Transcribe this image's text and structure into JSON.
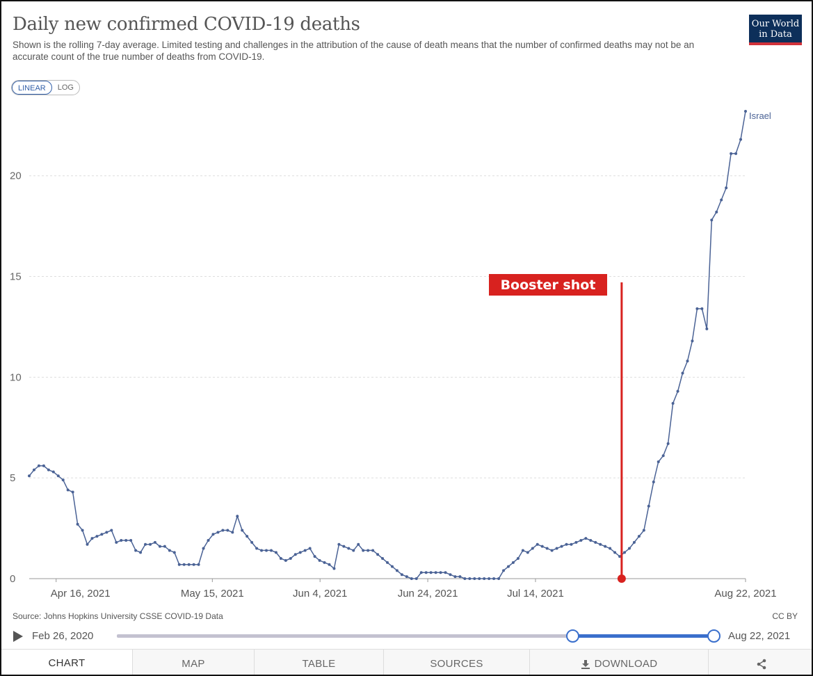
{
  "header": {
    "title": "Daily new confirmed COVID-19 deaths",
    "subtitle": "Shown is the rolling 7-day average. Limited testing and challenges in the attribution of the cause of death means that the number of confirmed deaths may not be an accurate count of the true number of deaths from COVID-19.",
    "logo_line1": "Our World",
    "logo_line2": "in Data"
  },
  "scale_toggle": {
    "linear": "LINEAR",
    "log": "LOG",
    "selected": "LINEAR"
  },
  "colors": {
    "series": "#4a6295",
    "annotation": "#d8221f",
    "grid": "#dddddd",
    "slider": "#3a6fcc"
  },
  "chart_data": {
    "type": "line",
    "x_start": "2021-04-11",
    "x_end": "2021-08-22",
    "y": [
      5.1,
      5.4,
      5.6,
      5.6,
      5.4,
      5.3,
      5.1,
      4.9,
      4.4,
      4.3,
      2.7,
      2.4,
      1.7,
      2.0,
      2.1,
      2.2,
      2.3,
      2.4,
      1.8,
      1.9,
      1.9,
      1.9,
      1.4,
      1.3,
      1.7,
      1.7,
      1.8,
      1.6,
      1.6,
      1.4,
      1.3,
      0.7,
      0.7,
      0.7,
      0.7,
      0.7,
      1.5,
      1.9,
      2.2,
      2.3,
      2.4,
      2.4,
      2.3,
      3.1,
      2.4,
      2.1,
      1.8,
      1.5,
      1.4,
      1.4,
      1.4,
      1.3,
      1.0,
      0.9,
      1.0,
      1.2,
      1.3,
      1.4,
      1.5,
      1.1,
      0.9,
      0.8,
      0.7,
      0.5,
      1.7,
      1.6,
      1.5,
      1.4,
      1.7,
      1.4,
      1.4,
      1.4,
      1.2,
      1.0,
      0.8,
      0.6,
      0.4,
      0.2,
      0.1,
      0.0,
      0.0,
      0.3,
      0.3,
      0.3,
      0.3,
      0.3,
      0.3,
      0.2,
      0.1,
      0.1,
      0.0,
      0.0,
      0.0,
      0.0,
      0.0,
      0.0,
      0.0,
      0.0,
      0.4,
      0.6,
      0.8,
      1.0,
      1.4,
      1.3,
      1.5,
      1.7,
      1.6,
      1.5,
      1.4,
      1.5,
      1.6,
      1.7,
      1.7,
      1.8,
      1.9,
      2.0,
      1.9,
      1.8,
      1.7,
      1.6,
      1.5,
      1.3,
      1.1,
      1.3,
      1.5,
      1.8,
      2.1,
      2.4,
      3.6,
      4.8,
      5.8,
      6.1,
      6.7,
      8.7,
      9.3,
      10.2,
      10.8,
      11.8,
      13.4,
      13.4,
      12.4,
      17.8,
      18.2,
      18.8,
      19.4,
      21.1,
      21.1,
      21.8,
      23.2
    ],
    "xticks": [
      "Apr 16, 2021",
      "May 15, 2021",
      "Jun 4, 2021",
      "Jun 24, 2021",
      "Jul 14, 2021",
      "Aug 22, 2021"
    ],
    "xtick_dates": [
      "2021-04-16",
      "2021-05-15",
      "2021-06-04",
      "2021-06-24",
      "2021-07-14",
      "2021-08-22"
    ],
    "yticks": [
      0,
      5,
      10,
      15,
      20
    ],
    "ylim": [
      0,
      23.2
    ],
    "series_name": "Israel",
    "annotation": {
      "label": "Booster shot",
      "date": "2021-07-30"
    },
    "grid": true,
    "xlabel": "",
    "ylabel": ""
  },
  "footer": {
    "source": "Source: Johns Hopkins University CSSE COVID-19 Data",
    "license": "CC BY"
  },
  "timeline": {
    "start_label": "Feb 26, 2020",
    "end_label": "Aug 22, 2021"
  },
  "tabs": {
    "chart": "CHART",
    "map": "MAP",
    "table": "TABLE",
    "sources": "SOURCES",
    "download": "DOWNLOAD"
  }
}
